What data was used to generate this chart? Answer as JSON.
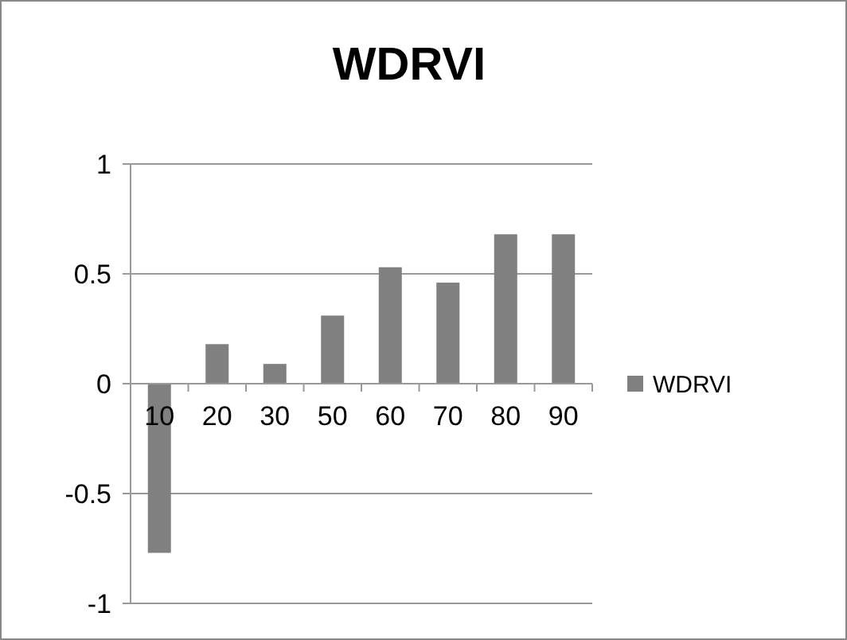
{
  "chart_data": {
    "type": "bar",
    "title": "WDRVI",
    "categories": [
      "10",
      "20",
      "30",
      "50",
      "60",
      "70",
      "80",
      "90"
    ],
    "series": [
      {
        "name": "WDRVI",
        "color": "#808080",
        "values": [
          -0.77,
          0.18,
          0.09,
          0.31,
          0.53,
          0.46,
          0.68,
          0.68
        ]
      }
    ],
    "ylim": [
      -1,
      1
    ],
    "yticks": [
      -1,
      -0.5,
      0,
      0.5,
      1
    ],
    "grid": "y",
    "legend": "right"
  }
}
